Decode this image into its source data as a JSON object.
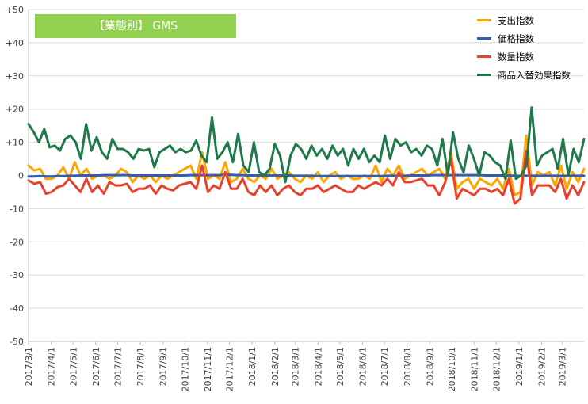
{
  "chart_data": {
    "type": "line",
    "title": "【業態別】 GMS",
    "ylim": [
      -50,
      50
    ],
    "y_ticks": [
      "+50",
      "+40",
      "+30",
      "+20",
      "+10",
      "0",
      "-10",
      "-20",
      "-30",
      "-40",
      "-50"
    ],
    "y_tick_values": [
      50,
      40,
      30,
      20,
      10,
      0,
      -10,
      -20,
      -30,
      -40,
      -50
    ],
    "x_labels": [
      "2017/3/1",
      "2017/4/1",
      "2017/5/1",
      "2017/6/1",
      "2017/7/1",
      "2017/8/1",
      "2017/9/1",
      "2017/10/1",
      "2017/11/1",
      "2017/12/1",
      "2018/1/1",
      "2018/2/1",
      "2018/3/1",
      "2018/4/1",
      "2018/5/1",
      "2018/6/1",
      "2018/7/1",
      "2018/8/1",
      "2018/9/1",
      "2018/10/1",
      "2018/11/1",
      "2018/12/1",
      "2019/1/1",
      "2019/2/1",
      "2019/3/1"
    ],
    "x_start": "2017/3/1",
    "x_end": "2019/3/31",
    "grid": true,
    "legend_position": "top-right",
    "series": [
      {
        "name": "支出指数",
        "color": "#ffa500",
        "values": [
          3,
          1.5,
          2,
          -1,
          -1,
          0,
          2.5,
          -1,
          4,
          0,
          2,
          -1,
          0,
          0,
          -1,
          0,
          2,
          1,
          -2,
          0,
          -1,
          0,
          -2,
          0,
          -1,
          0,
          1,
          2,
          3,
          -1,
          7,
          -1,
          0,
          -1,
          4,
          -2,
          -1,
          2,
          -1,
          -2,
          0,
          -1,
          2,
          -1,
          0,
          1,
          -1,
          -2,
          0,
          -1,
          1,
          -2,
          0,
          1,
          -1,
          0,
          -1,
          -1,
          0,
          -1,
          3,
          -2,
          2,
          0,
          3,
          -1,
          0,
          1,
          2,
          0,
          1,
          2,
          -1,
          7,
          -4,
          -2,
          -1,
          -4,
          -1,
          -2,
          -3,
          -1,
          -4,
          2,
          -6,
          -5,
          12,
          -3,
          1,
          0,
          1,
          -3,
          3,
          -4,
          1,
          -2,
          2
        ]
      },
      {
        "name": "価格指数",
        "color": "#2e5fb0",
        "values": [
          -0.3,
          -0.3,
          -0.2,
          -0.3,
          -0.3,
          -0.2,
          -0.2,
          -0.1,
          -0.1,
          0,
          0,
          0,
          0,
          0.1,
          0.1,
          0.1,
          0.1,
          0.1,
          0,
          0,
          0,
          0,
          0,
          0,
          0,
          0,
          0,
          0,
          0.1,
          0.1,
          0.1,
          0.1,
          0.1,
          0.1,
          0.2,
          0.2,
          0.1,
          0.1,
          0,
          0,
          0,
          0,
          0,
          0,
          0,
          0,
          -0.1,
          -0.1,
          -0.1,
          -0.1,
          -0.2,
          -0.2,
          -0.2,
          -0.2,
          -0.2,
          -0.2,
          -0.2,
          -0.2,
          -0.2,
          -0.2,
          -0.2,
          -0.2,
          -0.1,
          -0.1,
          -0.1,
          -0.1,
          0,
          0,
          0,
          0,
          0.1,
          0.1,
          0.1,
          0.1,
          0.1,
          0.1,
          0.1,
          0.1,
          0.1,
          0,
          0,
          0,
          0,
          0,
          -0.1,
          -0.1,
          -0.1,
          -0.1,
          -0.1,
          -0.1,
          -0.1,
          -0.1,
          -0.1,
          -0.1,
          -0.1,
          -0.1,
          -0.1
        ]
      },
      {
        "name": "数量指数",
        "color": "#e8422e",
        "values": [
          -1.5,
          -2.5,
          -2,
          -5.5,
          -5,
          -3.5,
          -3,
          -1,
          -3,
          -5,
          -1,
          -5,
          -3,
          -5.5,
          -2,
          -3,
          -3,
          -2.5,
          -5,
          -4,
          -4,
          -3,
          -5.5,
          -3,
          -4,
          -4.5,
          -3,
          -2.5,
          -2,
          -4,
          3,
          -5,
          -3,
          -4,
          1,
          -4,
          -4,
          -1,
          -5,
          -6,
          -3,
          -5,
          -3,
          -6,
          -4,
          -3,
          -5,
          -6,
          -4,
          -4,
          -3,
          -5,
          -4,
          -3,
          -4,
          -5,
          -5,
          -3,
          -4,
          -3,
          -2,
          -3,
          -1,
          -3,
          1,
          -2,
          -2,
          -1.5,
          -1,
          -3,
          -3,
          -6,
          -2,
          5,
          -7,
          -4,
          -5,
          -6,
          -4,
          -4,
          -5,
          -4,
          -6,
          -1,
          -8.5,
          -7,
          7.5,
          -6,
          -3,
          -3,
          -3,
          -5,
          -1,
          -7,
          -3,
          -6,
          -2
        ]
      },
      {
        "name": "商品入替効果指数",
        "color": "#1e7a4a",
        "values": [
          15.5,
          13,
          10,
          14,
          8.5,
          9,
          7.5,
          11,
          12,
          10,
          5,
          15.5,
          7.5,
          11.5,
          7,
          5,
          11,
          8,
          8,
          7,
          5,
          8,
          7.5,
          8,
          2.5,
          7,
          8,
          9,
          7,
          8,
          7,
          7.5,
          10.5,
          6,
          4,
          17.5,
          5,
          7,
          10,
          4,
          12.5,
          3,
          1,
          10,
          1,
          0,
          2,
          9.5,
          6,
          -2,
          6,
          9.5,
          8,
          5,
          9,
          6,
          8,
          5,
          9,
          6,
          8,
          3,
          8,
          5,
          8,
          4,
          6,
          4,
          12,
          5,
          11,
          9,
          10,
          7,
          8,
          6,
          9,
          8,
          3,
          11,
          0,
          13,
          5,
          1,
          9,
          5,
          0,
          7,
          6,
          4,
          3,
          -1,
          10.5,
          -1,
          0,
          3,
          20.5,
          3,
          6,
          7,
          8,
          2,
          11,
          0,
          8,
          4,
          11
        ]
      }
    ]
  }
}
